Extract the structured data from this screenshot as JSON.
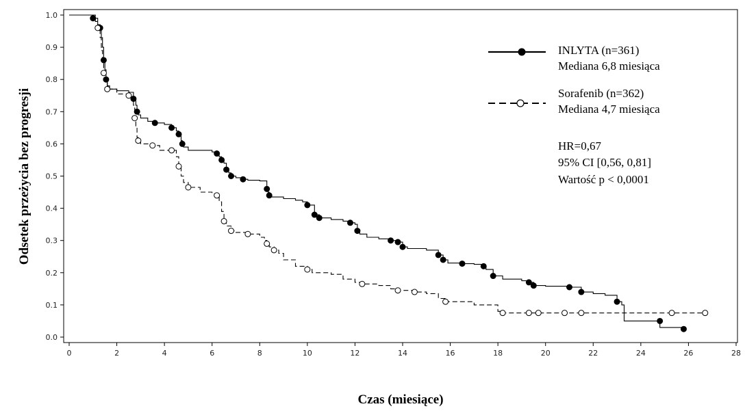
{
  "chart_data": {
    "type": "line",
    "xlabel": "Czas (miesiące)",
    "ylabel": "Odsetek przeżycia bez progresji",
    "xlim": [
      0,
      28
    ],
    "ylim": [
      0,
      1.0
    ],
    "x_ticks": [
      "0",
      "2",
      "4",
      "6",
      "8",
      "10",
      "12",
      "14",
      "16",
      "18",
      "20",
      "22",
      "24",
      "26",
      "28"
    ],
    "y_ticks": [
      "0.0",
      "0.1",
      "0.2",
      "0.3",
      "0.4",
      "0.5",
      "0.6",
      "0.7",
      "0.8",
      "0.9",
      "1.0"
    ],
    "grid": false,
    "legend_position": "top-right",
    "series": [
      {
        "name": "INLYTA (n=361)",
        "median_label": "Mediana 6,8 miesiąca",
        "line_style": "solid",
        "marker": "filled-circle",
        "color": "#000000",
        "points": [
          [
            0,
            1.0
          ],
          [
            1.0,
            0.99
          ],
          [
            1.2,
            0.97
          ],
          [
            1.3,
            0.96
          ],
          [
            1.35,
            0.93
          ],
          [
            1.4,
            0.9
          ],
          [
            1.45,
            0.86
          ],
          [
            1.5,
            0.83
          ],
          [
            1.55,
            0.8
          ],
          [
            1.6,
            0.78
          ],
          [
            1.7,
            0.77
          ],
          [
            2.0,
            0.765
          ],
          [
            2.5,
            0.76
          ],
          [
            2.7,
            0.74
          ],
          [
            2.8,
            0.72
          ],
          [
            2.85,
            0.7
          ],
          [
            2.9,
            0.69
          ],
          [
            3.0,
            0.68
          ],
          [
            3.3,
            0.67
          ],
          [
            3.6,
            0.665
          ],
          [
            4.0,
            0.66
          ],
          [
            4.3,
            0.65
          ],
          [
            4.5,
            0.64
          ],
          [
            4.6,
            0.63
          ],
          [
            4.7,
            0.61
          ],
          [
            4.75,
            0.6
          ],
          [
            4.8,
            0.59
          ],
          [
            5.0,
            0.58
          ],
          [
            5.5,
            0.58
          ],
          [
            6.0,
            0.575
          ],
          [
            6.2,
            0.57
          ],
          [
            6.3,
            0.56
          ],
          [
            6.4,
            0.55
          ],
          [
            6.5,
            0.54
          ],
          [
            6.6,
            0.52
          ],
          [
            6.7,
            0.51
          ],
          [
            6.8,
            0.5
          ],
          [
            7.0,
            0.495
          ],
          [
            7.3,
            0.49
          ],
          [
            7.5,
            0.487
          ],
          [
            8.0,
            0.485
          ],
          [
            8.3,
            0.46
          ],
          [
            8.35,
            0.45
          ],
          [
            8.4,
            0.44
          ],
          [
            8.5,
            0.435
          ],
          [
            9.0,
            0.43
          ],
          [
            9.5,
            0.425
          ],
          [
            9.8,
            0.42
          ],
          [
            10.0,
            0.41
          ],
          [
            10.3,
            0.38
          ],
          [
            10.5,
            0.37
          ],
          [
            11.0,
            0.365
          ],
          [
            11.5,
            0.36
          ],
          [
            11.8,
            0.355
          ],
          [
            12.0,
            0.35
          ],
          [
            12.1,
            0.33
          ],
          [
            12.2,
            0.32
          ],
          [
            12.5,
            0.31
          ],
          [
            13.0,
            0.305
          ],
          [
            13.5,
            0.3
          ],
          [
            13.8,
            0.295
          ],
          [
            14.0,
            0.28
          ],
          [
            14.2,
            0.275
          ],
          [
            15.0,
            0.27
          ],
          [
            15.5,
            0.255
          ],
          [
            15.7,
            0.24
          ],
          [
            15.9,
            0.23
          ],
          [
            16.5,
            0.228
          ],
          [
            17.0,
            0.226
          ],
          [
            17.4,
            0.22
          ],
          [
            17.5,
            0.21
          ],
          [
            17.8,
            0.19
          ],
          [
            18.2,
            0.18
          ],
          [
            19.0,
            0.175
          ],
          [
            19.3,
            0.17
          ],
          [
            19.5,
            0.16
          ],
          [
            20.0,
            0.158
          ],
          [
            21.0,
            0.155
          ],
          [
            21.5,
            0.14
          ],
          [
            22.0,
            0.135
          ],
          [
            22.5,
            0.13
          ],
          [
            23.0,
            0.11
          ],
          [
            23.2,
            0.1
          ],
          [
            23.3,
            0.05
          ],
          [
            24.5,
            0.05
          ],
          [
            24.8,
            0.03
          ],
          [
            25.8,
            0.025
          ]
        ],
        "censored": [
          [
            1.0,
            0.99
          ],
          [
            1.3,
            0.96
          ],
          [
            1.45,
            0.86
          ],
          [
            1.55,
            0.8
          ],
          [
            2.7,
            0.74
          ],
          [
            2.85,
            0.7
          ],
          [
            3.6,
            0.665
          ],
          [
            4.3,
            0.65
          ],
          [
            4.6,
            0.63
          ],
          [
            4.75,
            0.6
          ],
          [
            6.2,
            0.57
          ],
          [
            6.4,
            0.55
          ],
          [
            6.6,
            0.52
          ],
          [
            6.8,
            0.5
          ],
          [
            7.3,
            0.49
          ],
          [
            8.3,
            0.46
          ],
          [
            8.4,
            0.44
          ],
          [
            10.0,
            0.41
          ],
          [
            10.3,
            0.38
          ],
          [
            10.5,
            0.37
          ],
          [
            11.8,
            0.355
          ],
          [
            12.1,
            0.33
          ],
          [
            13.5,
            0.3
          ],
          [
            13.8,
            0.295
          ],
          [
            14.0,
            0.28
          ],
          [
            15.5,
            0.255
          ],
          [
            15.7,
            0.24
          ],
          [
            16.5,
            0.228
          ],
          [
            17.4,
            0.22
          ],
          [
            17.8,
            0.19
          ],
          [
            19.3,
            0.17
          ],
          [
            19.5,
            0.16
          ],
          [
            21.0,
            0.155
          ],
          [
            21.5,
            0.14
          ],
          [
            23.0,
            0.11
          ],
          [
            24.8,
            0.05
          ],
          [
            25.8,
            0.025
          ]
        ]
      },
      {
        "name": "Sorafenib (n=362)",
        "median_label": "Mediana 4,7 miesiąca",
        "line_style": "dashed",
        "marker": "open-circle",
        "color": "#000000",
        "points": [
          [
            0,
            1.0
          ],
          [
            1.1,
            0.98
          ],
          [
            1.2,
            0.96
          ],
          [
            1.3,
            0.93
          ],
          [
            1.35,
            0.89
          ],
          [
            1.4,
            0.86
          ],
          [
            1.45,
            0.82
          ],
          [
            1.5,
            0.8
          ],
          [
            1.6,
            0.77
          ],
          [
            2.0,
            0.755
          ],
          [
            2.5,
            0.75
          ],
          [
            2.6,
            0.74
          ],
          [
            2.7,
            0.72
          ],
          [
            2.75,
            0.68
          ],
          [
            2.8,
            0.65
          ],
          [
            2.85,
            0.62
          ],
          [
            2.9,
            0.61
          ],
          [
            3.0,
            0.6
          ],
          [
            3.5,
            0.595
          ],
          [
            3.8,
            0.58
          ],
          [
            4.3,
            0.58
          ],
          [
            4.5,
            0.56
          ],
          [
            4.6,
            0.53
          ],
          [
            4.7,
            0.5
          ],
          [
            4.8,
            0.48
          ],
          [
            5.0,
            0.465
          ],
          [
            5.5,
            0.45
          ],
          [
            6.0,
            0.445
          ],
          [
            6.2,
            0.44
          ],
          [
            6.3,
            0.42
          ],
          [
            6.4,
            0.39
          ],
          [
            6.5,
            0.36
          ],
          [
            6.6,
            0.345
          ],
          [
            6.8,
            0.33
          ],
          [
            7.0,
            0.325
          ],
          [
            7.5,
            0.32
          ],
          [
            8.0,
            0.31
          ],
          [
            8.2,
            0.3
          ],
          [
            8.3,
            0.29
          ],
          [
            8.4,
            0.28
          ],
          [
            8.6,
            0.27
          ],
          [
            8.8,
            0.26
          ],
          [
            9.0,
            0.24
          ],
          [
            9.5,
            0.22
          ],
          [
            10.0,
            0.21
          ],
          [
            10.2,
            0.2
          ],
          [
            11.0,
            0.195
          ],
          [
            11.5,
            0.18
          ],
          [
            12.0,
            0.17
          ],
          [
            12.3,
            0.165
          ],
          [
            13.0,
            0.16
          ],
          [
            13.5,
            0.15
          ],
          [
            13.8,
            0.145
          ],
          [
            14.5,
            0.14
          ],
          [
            15.0,
            0.135
          ],
          [
            15.5,
            0.12
          ],
          [
            15.8,
            0.11
          ],
          [
            17.0,
            0.1
          ],
          [
            18.0,
            0.08
          ],
          [
            18.2,
            0.075
          ],
          [
            20.0,
            0.075
          ],
          [
            22.0,
            0.075
          ],
          [
            25.3,
            0.075
          ],
          [
            26.7,
            0.075
          ]
        ],
        "censored": [
          [
            1.2,
            0.96
          ],
          [
            1.45,
            0.82
          ],
          [
            1.6,
            0.77
          ],
          [
            2.5,
            0.75
          ],
          [
            2.75,
            0.68
          ],
          [
            2.9,
            0.61
          ],
          [
            3.5,
            0.595
          ],
          [
            4.3,
            0.58
          ],
          [
            4.6,
            0.53
          ],
          [
            5.0,
            0.465
          ],
          [
            6.2,
            0.44
          ],
          [
            6.5,
            0.36
          ],
          [
            6.8,
            0.33
          ],
          [
            7.5,
            0.32
          ],
          [
            8.3,
            0.29
          ],
          [
            8.6,
            0.27
          ],
          [
            10.0,
            0.21
          ],
          [
            12.3,
            0.165
          ],
          [
            13.8,
            0.145
          ],
          [
            14.5,
            0.14
          ],
          [
            15.8,
            0.11
          ],
          [
            18.2,
            0.075
          ],
          [
            19.3,
            0.075
          ],
          [
            19.7,
            0.075
          ],
          [
            20.8,
            0.075
          ],
          [
            21.5,
            0.075
          ],
          [
            25.3,
            0.075
          ],
          [
            26.7,
            0.075
          ]
        ]
      }
    ],
    "annotations": [
      "HR=0,67",
      "95% CI [0,56, 0,81]",
      "Wartość p < 0,0001"
    ]
  }
}
